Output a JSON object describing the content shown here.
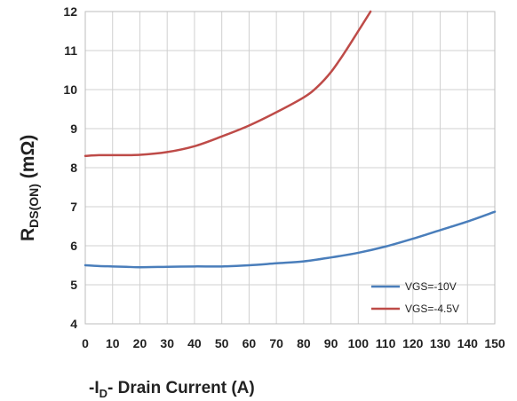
{
  "chart_data": {
    "type": "line",
    "title": "",
    "xlabel": {
      "prefix": "-I",
      "sub": "D",
      "suffix": "- Drain Current (A)"
    },
    "ylabel": {
      "base": "R",
      "sub": "DS(ON)",
      "suffix": " (mΩ)"
    },
    "xlim": [
      0,
      150
    ],
    "ylim": [
      4,
      12
    ],
    "xticks": [
      "0",
      "10",
      "20",
      "30",
      "40",
      "50",
      "60",
      "70",
      "80",
      "90",
      "100",
      "110",
      "120",
      "130",
      "140",
      "150"
    ],
    "yticks": [
      "4",
      "5",
      "6",
      "7",
      "8",
      "9",
      "10",
      "11",
      "12"
    ],
    "grid": true,
    "legend_position": "bottom-right",
    "series": [
      {
        "name": "VGS=-10V",
        "color": "#4a7ebb",
        "x": [
          0,
          5,
          10,
          15,
          20,
          30,
          40,
          50,
          60,
          70,
          80,
          90,
          100,
          110,
          120,
          130,
          140,
          150
        ],
        "y": [
          5.5,
          5.48,
          5.47,
          5.46,
          5.45,
          5.46,
          5.47,
          5.47,
          5.5,
          5.55,
          5.6,
          5.7,
          5.82,
          5.98,
          6.18,
          6.4,
          6.62,
          6.87
        ]
      },
      {
        "name": "VGS=-4.5V",
        "color": "#be4b48",
        "x": [
          0,
          5,
          10,
          20,
          30,
          40,
          50,
          60,
          70,
          80,
          85,
          90,
          95,
          100,
          104.5
        ],
        "y": [
          8.3,
          8.32,
          8.32,
          8.33,
          8.4,
          8.55,
          8.8,
          9.08,
          9.42,
          9.8,
          10.07,
          10.45,
          10.95,
          11.5,
          12.0
        ]
      }
    ]
  }
}
